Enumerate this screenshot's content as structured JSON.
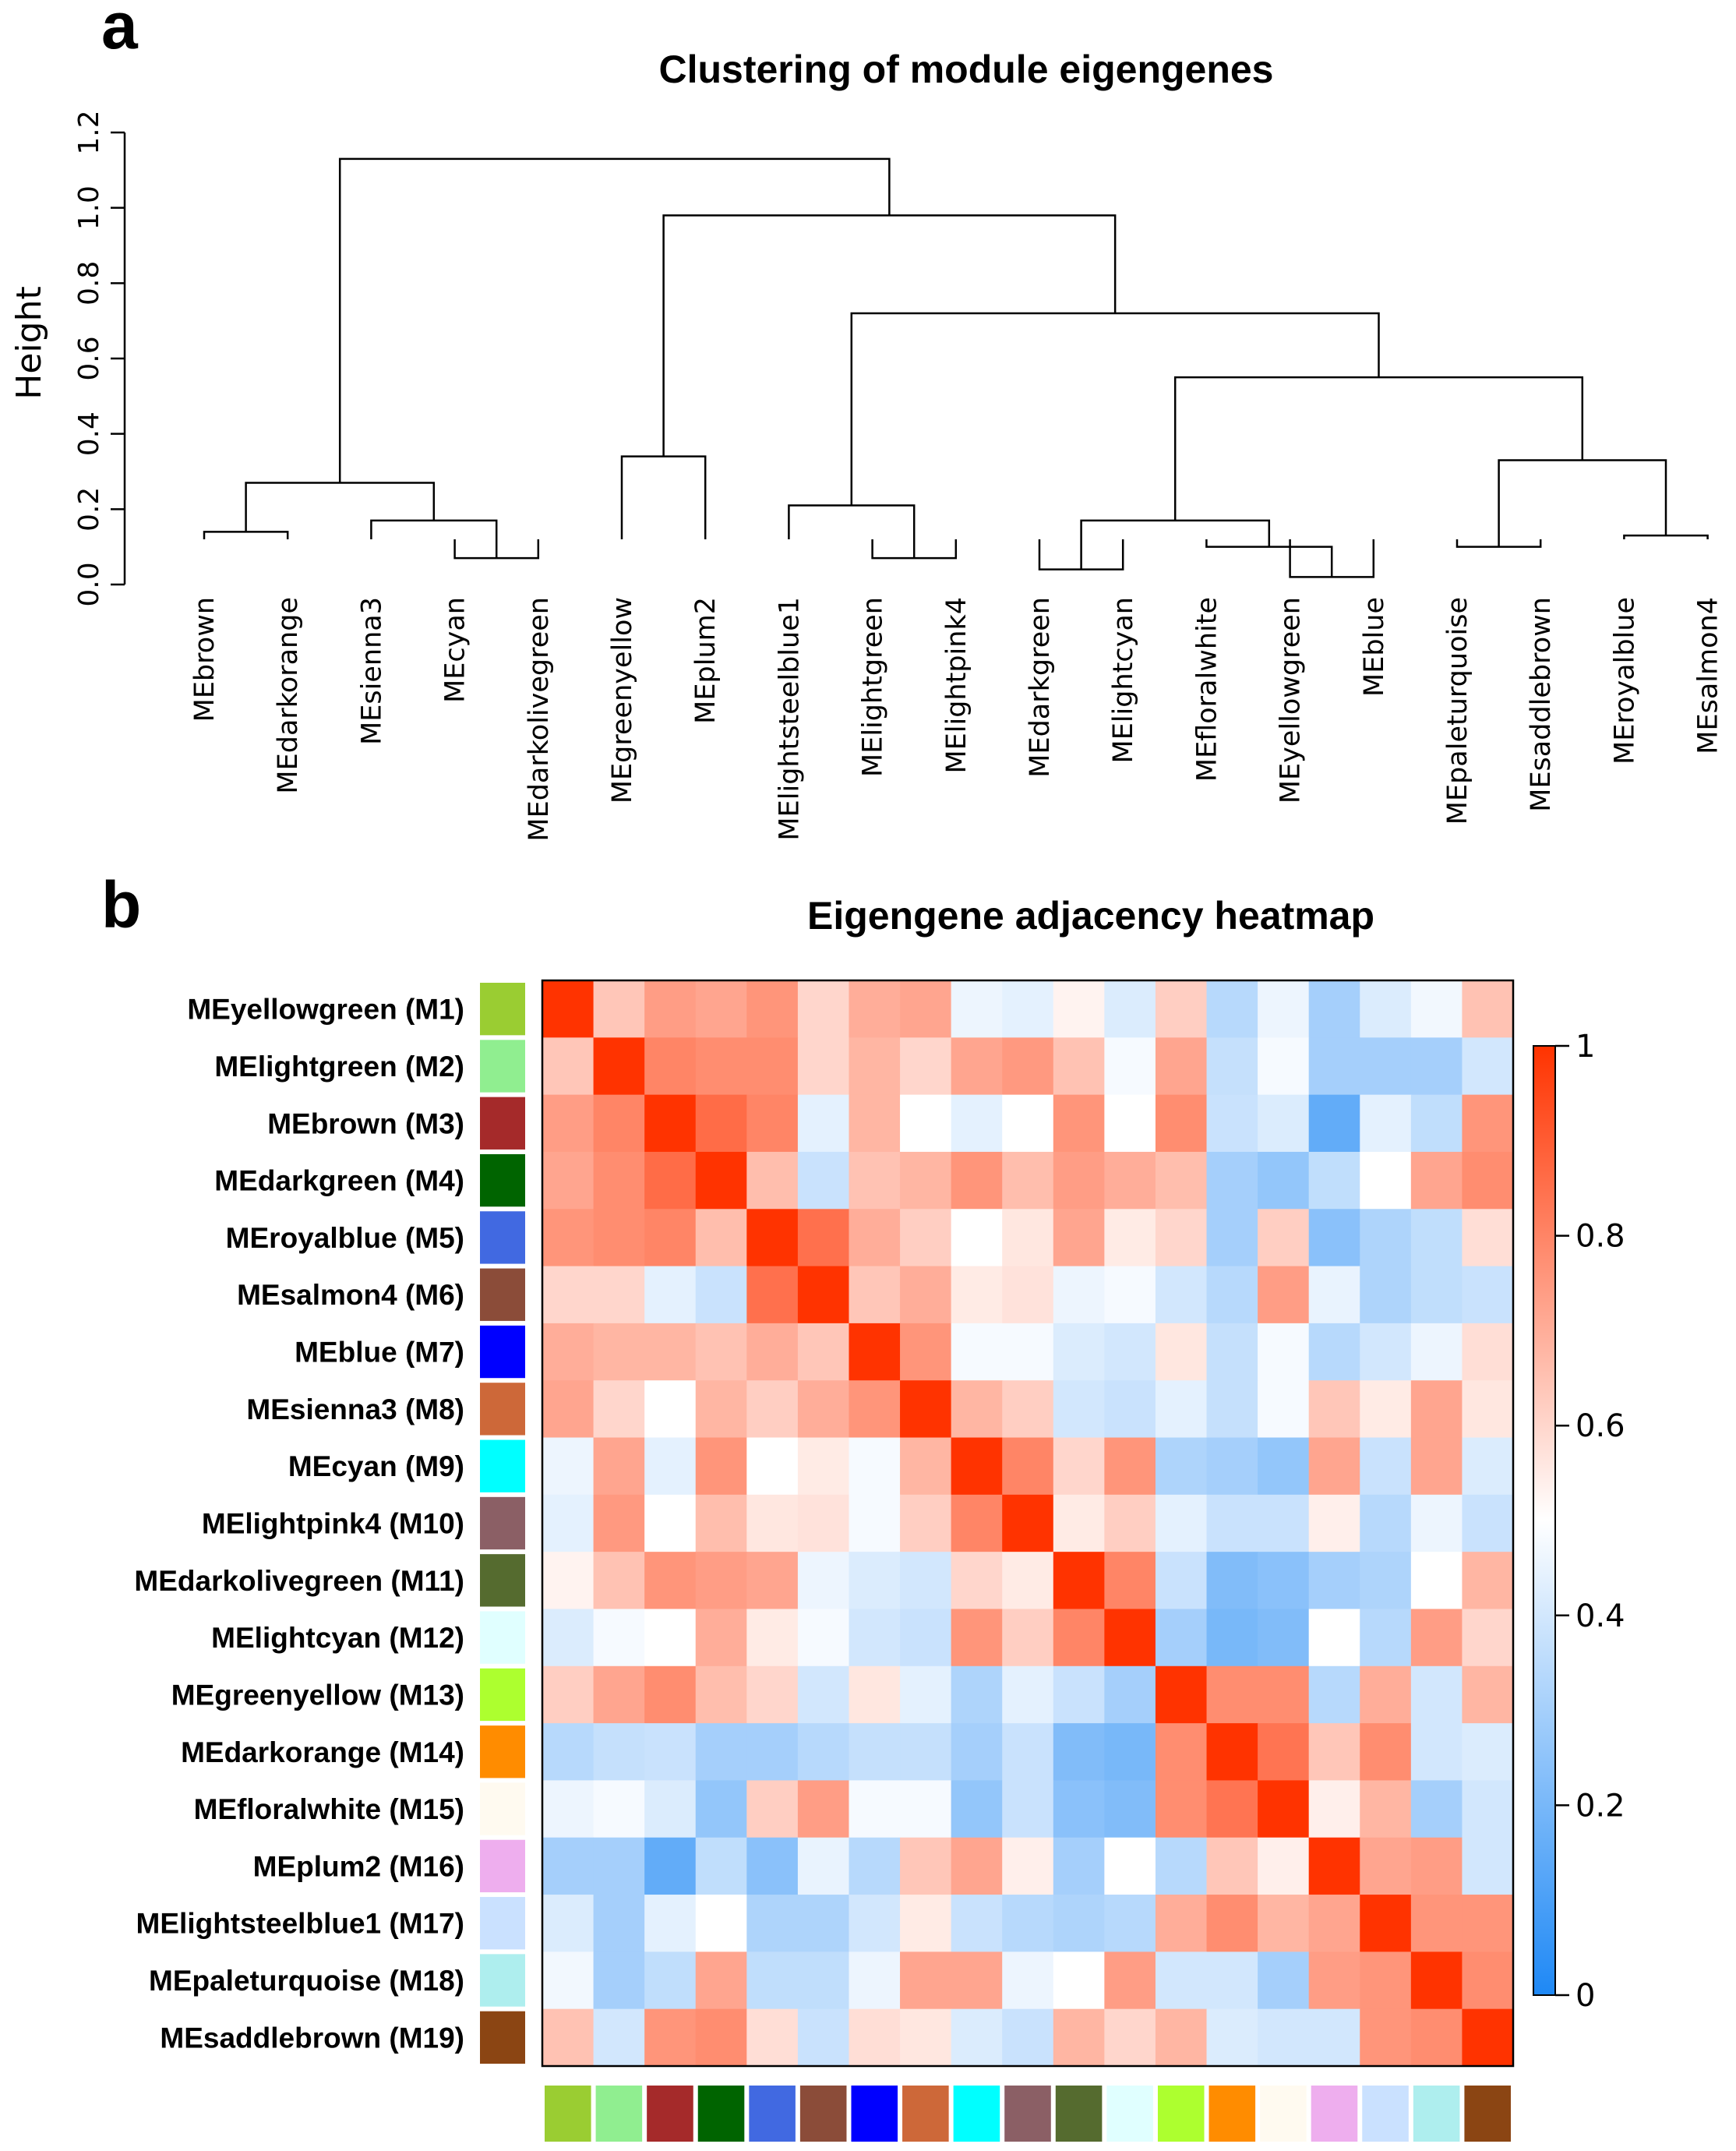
{
  "panel_a_letter": "a",
  "panel_b_letter": "b",
  "chart_data": [
    {
      "type": "dendrogram",
      "title": "Clustering of module eigengenes",
      "ylabel": "Height",
      "ylim": [
        0,
        1.2
      ],
      "yticks": [
        "0.0",
        "0.2",
        "0.4",
        "0.6",
        "0.8",
        "1.0",
        "1.2"
      ],
      "leaves": [
        "MEbrown",
        "MEdarkorange",
        "MEsienna3",
        "MEcyan",
        "MEdarkolivegreen",
        "MEgreenyellow",
        "MEplum2",
        "MElightsteelblue1",
        "MElightgreen",
        "MElightpink4",
        "MEdarkgreen",
        "MElightcyan",
        "MEfloralwhite",
        "MEyellowgreen",
        "MEblue",
        "MEpaleturquoise",
        "MEsaddlebrown",
        "MEroyalblue",
        "MEsalmon4"
      ],
      "merges": [
        {
          "id": "A",
          "a": "MEbrown",
          "b": "MEdarkorange",
          "height": 0.14
        },
        {
          "id": "B",
          "a": "MEcyan",
          "b": "MEdarkolivegreen",
          "height": 0.07
        },
        {
          "id": "C",
          "a": "MEsienna3",
          "b": "B",
          "height": 0.17
        },
        {
          "id": "D",
          "a": "A",
          "b": "C",
          "height": 0.27
        },
        {
          "id": "E",
          "a": "MEgreenyellow",
          "b": "MEplum2",
          "height": 0.34
        },
        {
          "id": "F",
          "a": "MElightgreen",
          "b": "MElightpink4",
          "height": 0.07
        },
        {
          "id": "G",
          "a": "MElightsteelblue1",
          "b": "F",
          "height": 0.21
        },
        {
          "id": "H",
          "a": "MEdarkgreen",
          "b": "MElightcyan",
          "height": 0.04
        },
        {
          "id": "I",
          "a": "MEyellowgreen",
          "b": "MEblue",
          "height": 0.02
        },
        {
          "id": "J",
          "a": "MEfloralwhite",
          "b": "I",
          "height": 0.1
        },
        {
          "id": "K",
          "a": "H",
          "b": "J",
          "height": 0.17
        },
        {
          "id": "L",
          "a": "MEpaleturquoise",
          "b": "MEsaddlebrown",
          "height": 0.1
        },
        {
          "id": "M",
          "a": "MEroyalblue",
          "b": "MEsalmon4",
          "height": 0.13
        },
        {
          "id": "N",
          "a": "L",
          "b": "M",
          "height": 0.33
        },
        {
          "id": "O",
          "a": "K",
          "b": "N",
          "height": 0.55
        },
        {
          "id": "P",
          "a": "G",
          "b": "O",
          "height": 0.72
        },
        {
          "id": "Q",
          "a": "E",
          "b": "P",
          "height": 0.98
        },
        {
          "id": "R",
          "a": "D",
          "b": "Q",
          "height": 1.13
        }
      ]
    },
    {
      "type": "heatmap",
      "title": "Eigengene adjacency heatmap",
      "rows": [
        "MEyellowgreen (M1)",
        "MElightgreen (M2)",
        "MEbrown (M3)",
        "MEdarkgreen (M4)",
        "MEroyalblue (M5)",
        "MEsalmon4 (M6)",
        "MEblue (M7)",
        "MEsienna3 (M8)",
        "MEcyan (M9)",
        "MElightpink4 (M10)",
        "MEdarkolivegreen (M11)",
        "MElightcyan (M12)",
        "MEgreenyellow (M13)",
        "MEdarkorange (M14)",
        "MEfloralwhite (M15)",
        "MEplum2 (M16)",
        "MElightsteelblue1 (M17)",
        "MEpaleturquoise (M18)",
        "MEsaddlebrown (M19)"
      ],
      "module_colors": [
        "#9acd32",
        "#90ee90",
        "#a52a2a",
        "#006400",
        "#4169e1",
        "#8b4c39",
        "#0000ff",
        "#cd6839",
        "#00ffff",
        "#8b5f65",
        "#556b2f",
        "#e0ffff",
        "#adff2f",
        "#ff8c00",
        "#fffaf0",
        "#eeaeee",
        "#cae1ff",
        "#aeeeee",
        "#8b4513"
      ],
      "colorbar": {
        "min": 0,
        "max": 1,
        "ticks": [
          "0",
          "0.2",
          "0.4",
          "0.6",
          "0.8",
          "1"
        ],
        "low": "#1e88f5",
        "mid": "#ffffff",
        "high": "#ff3300"
      },
      "values": [
        [
          1.0,
          0.64,
          0.74,
          0.72,
          0.76,
          0.6,
          0.7,
          0.72,
          0.46,
          0.44,
          0.53,
          0.42,
          0.62,
          0.34,
          0.46,
          0.3,
          0.42,
          0.47,
          0.65
        ],
        [
          0.64,
          1.0,
          0.8,
          0.78,
          0.78,
          0.6,
          0.68,
          0.6,
          0.72,
          0.75,
          0.65,
          0.48,
          0.72,
          0.37,
          0.48,
          0.3,
          0.3,
          0.3,
          0.4
        ],
        [
          0.74,
          0.8,
          1.0,
          0.86,
          0.8,
          0.44,
          0.68,
          0.5,
          0.44,
          0.5,
          0.76,
          0.5,
          0.78,
          0.38,
          0.42,
          0.15,
          0.44,
          0.36,
          0.76
        ],
        [
          0.72,
          0.78,
          0.86,
          1.0,
          0.66,
          0.38,
          0.65,
          0.68,
          0.76,
          0.66,
          0.74,
          0.7,
          0.66,
          0.3,
          0.26,
          0.36,
          0.5,
          0.72,
          0.78
        ],
        [
          0.76,
          0.78,
          0.8,
          0.66,
          1.0,
          0.85,
          0.7,
          0.62,
          0.5,
          0.56,
          0.72,
          0.55,
          0.6,
          0.3,
          0.62,
          0.24,
          0.32,
          0.36,
          0.58
        ],
        [
          0.6,
          0.6,
          0.44,
          0.38,
          0.85,
          1.0,
          0.64,
          0.7,
          0.55,
          0.57,
          0.46,
          0.48,
          0.4,
          0.34,
          0.74,
          0.45,
          0.32,
          0.36,
          0.38
        ],
        [
          0.7,
          0.68,
          0.68,
          0.65,
          0.7,
          0.64,
          1.0,
          0.76,
          0.48,
          0.48,
          0.42,
          0.4,
          0.56,
          0.37,
          0.48,
          0.34,
          0.4,
          0.46,
          0.58
        ],
        [
          0.72,
          0.6,
          0.5,
          0.68,
          0.62,
          0.7,
          0.76,
          1.0,
          0.68,
          0.62,
          0.4,
          0.38,
          0.44,
          0.37,
          0.48,
          0.64,
          0.55,
          0.72,
          0.56
        ],
        [
          0.46,
          0.72,
          0.44,
          0.76,
          0.5,
          0.55,
          0.48,
          0.68,
          1.0,
          0.8,
          0.6,
          0.76,
          0.32,
          0.3,
          0.26,
          0.72,
          0.38,
          0.72,
          0.42
        ],
        [
          0.44,
          0.75,
          0.5,
          0.66,
          0.56,
          0.57,
          0.48,
          0.62,
          0.8,
          1.0,
          0.55,
          0.62,
          0.44,
          0.38,
          0.38,
          0.54,
          0.34,
          0.46,
          0.38
        ],
        [
          0.53,
          0.65,
          0.76,
          0.74,
          0.72,
          0.46,
          0.42,
          0.4,
          0.6,
          0.55,
          1.0,
          0.8,
          0.38,
          0.22,
          0.24,
          0.3,
          0.32,
          0.5,
          0.68
        ],
        [
          0.42,
          0.48,
          0.5,
          0.7,
          0.55,
          0.48,
          0.4,
          0.38,
          0.76,
          0.62,
          0.8,
          1.0,
          0.3,
          0.2,
          0.22,
          0.5,
          0.34,
          0.74,
          0.6
        ],
        [
          0.62,
          0.72,
          0.78,
          0.66,
          0.6,
          0.4,
          0.56,
          0.44,
          0.32,
          0.44,
          0.38,
          0.3,
          1.0,
          0.78,
          0.78,
          0.34,
          0.7,
          0.4,
          0.68
        ],
        [
          0.34,
          0.37,
          0.38,
          0.3,
          0.3,
          0.34,
          0.37,
          0.37,
          0.3,
          0.38,
          0.22,
          0.2,
          0.78,
          1.0,
          0.84,
          0.64,
          0.78,
          0.4,
          0.42
        ],
        [
          0.46,
          0.48,
          0.42,
          0.26,
          0.62,
          0.74,
          0.48,
          0.48,
          0.26,
          0.38,
          0.24,
          0.22,
          0.78,
          0.84,
          1.0,
          0.54,
          0.68,
          0.3,
          0.4
        ],
        [
          0.3,
          0.3,
          0.15,
          0.36,
          0.24,
          0.45,
          0.34,
          0.64,
          0.72,
          0.54,
          0.3,
          0.5,
          0.34,
          0.64,
          0.54,
          1.0,
          0.72,
          0.74,
          0.4
        ],
        [
          0.42,
          0.3,
          0.44,
          0.5,
          0.32,
          0.32,
          0.4,
          0.55,
          0.38,
          0.34,
          0.32,
          0.34,
          0.7,
          0.78,
          0.68,
          0.72,
          1.0,
          0.76,
          0.76
        ],
        [
          0.47,
          0.3,
          0.36,
          0.72,
          0.36,
          0.36,
          0.46,
          0.72,
          0.72,
          0.46,
          0.5,
          0.74,
          0.4,
          0.4,
          0.3,
          0.74,
          0.76,
          1.0,
          0.78
        ],
        [
          0.65,
          0.4,
          0.76,
          0.78,
          0.58,
          0.38,
          0.58,
          0.56,
          0.42,
          0.38,
          0.68,
          0.6,
          0.68,
          0.42,
          0.4,
          0.4,
          0.76,
          0.78,
          1.0
        ]
      ]
    }
  ]
}
